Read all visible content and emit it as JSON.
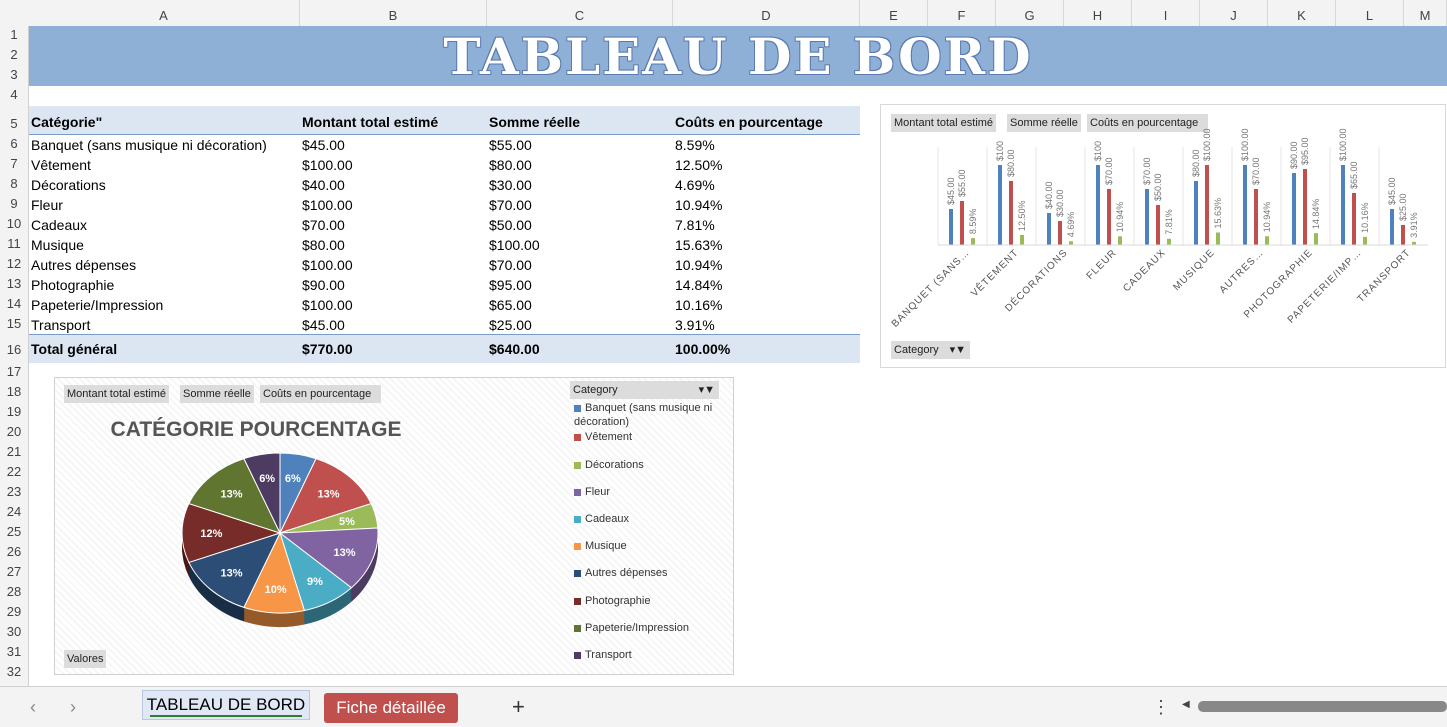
{
  "columns": [
    {
      "label": "A",
      "l": 28,
      "w": 272
    },
    {
      "label": "B",
      "l": 300,
      "w": 187
    },
    {
      "label": "C",
      "l": 487,
      "w": 186
    },
    {
      "label": "D",
      "l": 673,
      "w": 187
    },
    {
      "label": "E",
      "l": 860,
      "w": 68
    },
    {
      "label": "F",
      "l": 928,
      "w": 68
    },
    {
      "label": "G",
      "l": 996,
      "w": 68
    },
    {
      "label": "H",
      "l": 1064,
      "w": 68
    },
    {
      "label": "I",
      "l": 1132,
      "w": 68
    },
    {
      "label": "J",
      "l": 1200,
      "w": 68
    },
    {
      "label": "K",
      "l": 1268,
      "w": 68
    },
    {
      "label": "L",
      "l": 1336,
      "w": 68
    },
    {
      "label": "M",
      "l": 1404,
      "w": 43
    }
  ],
  "rows": [
    "1",
    "2",
    "3",
    "4",
    "5",
    "6",
    "7",
    "8",
    "9",
    "10",
    "11",
    "12",
    "13",
    "14",
    "15",
    "16",
    "17",
    "18",
    "19",
    "20",
    "21",
    "22",
    "23",
    "24",
    "25",
    "26",
    "27",
    "28",
    "29",
    "30",
    "31",
    "32"
  ],
  "banner_title": "TABLEAU DE BORD",
  "table": {
    "headers": [
      "Catégorie\"",
      "Montant total estimé",
      "Somme réelle",
      "Coûts en pourcentage"
    ],
    "rows": [
      [
        "Banquet (sans musique ni décoration)",
        "$45.00",
        "$55.00",
        "8.59%"
      ],
      [
        "Vêtement",
        "$100.00",
        "$80.00",
        "12.50%"
      ],
      [
        "Décorations",
        "$40.00",
        "$30.00",
        "4.69%"
      ],
      [
        "Fleur",
        "$100.00",
        "$70.00",
        "10.94%"
      ],
      [
        "Cadeaux",
        "$70.00",
        "$50.00",
        "7.81%"
      ],
      [
        "Musique",
        "$80.00",
        "$100.00",
        "15.63%"
      ],
      [
        "Autres dépenses",
        "$100.00",
        "$70.00",
        "10.94%"
      ],
      [
        "Photographie",
        "$90.00",
        "$95.00",
        "14.84%"
      ],
      [
        "Papeterie/Impression",
        "$100.00",
        "$65.00",
        "10.16%"
      ],
      [
        "Transport",
        "$45.00",
        "$25.00",
        "3.91%"
      ]
    ],
    "total": [
      "Total général",
      "$770.00",
      "$640.00",
      "100.00%"
    ]
  },
  "field_buttons": {
    "estimated": "Montant total estimé",
    "actual": "Somme  réelle",
    "percent": "Coûts en pourcentage",
    "category": "Category",
    "values": "Valores"
  },
  "chart_data": [
    {
      "type": "bar",
      "categories": [
        "BANQUET (SANS…",
        "VÊTEMENT",
        "DÉCORATIONS",
        "FLEUR",
        "CADEAUX",
        "MUSIQUE",
        "AUTRES…",
        "PHOTOGRAPHIE",
        "PAPETERIE/IMP…",
        "TRANSPORT"
      ],
      "series": [
        {
          "values": [
            45,
            100,
            40,
            100,
            70,
            80,
            100,
            90,
            100,
            45
          ],
          "labels": [
            "$45.00",
            "$100",
            "$40.00",
            "$100",
            "$70.00",
            "$80.00",
            "$100.00",
            "$90.00",
            "$100.00",
            "$45.00"
          ],
          "color": "#4f81bd"
        },
        {
          "values": [
            55,
            80,
            30,
            70,
            50,
            100,
            70,
            95,
            65,
            25
          ],
          "labels": [
            "$55.00",
            "$80.00",
            "$30.00",
            "$70.00",
            "$50.00",
            "$100.00",
            "$70.00",
            "$95.00",
            "$65.00",
            "$25.00"
          ],
          "color": "#c0504d"
        },
        {
          "values": [
            8.59,
            12.5,
            4.69,
            10.94,
            7.81,
            15.63,
            10.94,
            14.84,
            10.16,
            3.91
          ],
          "labels": [
            "8.59%",
            "12.50%",
            "4.69%",
            "10.94%",
            "7.81%",
            "15.63%",
            "10.94%",
            "14.84%",
            "10.16%",
            "3.91%"
          ],
          "color": "#9bbb59"
        }
      ],
      "ylim": [
        0,
        100
      ]
    },
    {
      "type": "pie",
      "title": "CATÉGORIE POURCENTAGE",
      "categories": [
        "Banquet (sans musique ni décoration)",
        "Vêtement",
        "Décorations",
        "Fleur",
        "Cadeaux",
        "Musique",
        "Autres dépenses",
        "Photographie",
        "Papeterie/Impression",
        "Transport"
      ],
      "values": [
        6,
        13,
        5,
        13,
        9,
        10,
        13,
        12,
        13,
        6
      ],
      "labels": [
        "6%",
        "13%",
        "5%",
        "13%",
        "9%",
        "10%",
        "13%",
        "12%",
        "13%",
        "6%"
      ],
      "colors": [
        "#4f81bd",
        "#c0504d",
        "#9bbb59",
        "#8064a2",
        "#4bacc6",
        "#f79646",
        "#2c4d75",
        "#772c2a",
        "#5f7530",
        "#4d3b62"
      ]
    }
  ],
  "sheet_tabs": [
    "TABLEAU DE BORD",
    "Fiche détaillée"
  ],
  "nav": {
    "prev": "‹",
    "next": "›",
    "add": "+",
    "more": "⋮"
  }
}
